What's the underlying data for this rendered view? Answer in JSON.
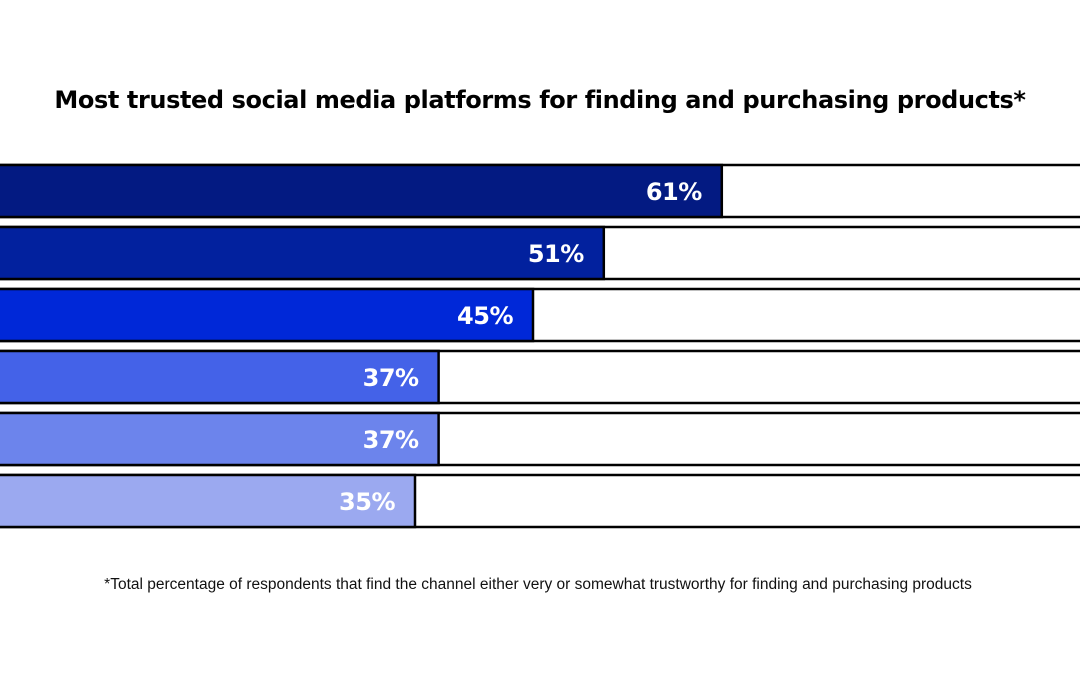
{
  "chart_data": {
    "type": "bar",
    "orientation": "horizontal",
    "title": "Most trusted social media platforms for finding and purchasing products*",
    "categories": [
      "",
      "",
      "",
      "",
      "",
      ""
    ],
    "values": [
      61,
      51,
      45,
      37,
      37,
      35
    ],
    "data_labels": [
      "61%",
      "51%",
      "45%",
      "37%",
      "37%",
      "35%"
    ],
    "xlim": [
      0,
      100
    ],
    "grid": false,
    "legend": "none",
    "colors": [
      "#031a82",
      "#02219e",
      "#0028d8",
      "#4462e8",
      "#6c84ec",
      "#9ba9f0"
    ],
    "footnote": "*Total percentage of respondents that find the channel either very or somewhat trustworthy for finding and purchasing products"
  }
}
